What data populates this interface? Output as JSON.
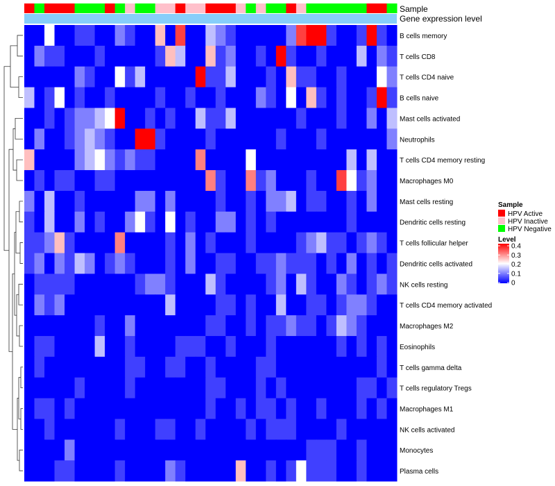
{
  "chart_data": {
    "type": "heatmap",
    "title": "",
    "annotation_labels": {
      "sample": "Sample",
      "expression": "Gene expression level"
    },
    "rows": [
      "B cells memory",
      "T cells CD8",
      "T cells CD4 naive",
      "B cells naive",
      "Mast cells activated",
      "Neutrophils",
      "T cells CD4 memory resting",
      "Macrophages M0",
      "Mast cells resting",
      "Dendritic cells resting",
      "T cells follicular helper",
      "Dendritic cells activated",
      "NK cells resting",
      "T cells CD4 memory activated",
      "Macrophages M2",
      "Eosinophils",
      "T cells gamma delta",
      "T cells regulatory  Tregs",
      "Macrophages M1",
      "NK cells activated",
      "Monocytes",
      "Plasma cells"
    ],
    "sample_groups": [
      "HPV Active",
      "HPV Negative",
      "HPV Active",
      "HPV Active",
      "HPV Active",
      "HPV Negative",
      "HPV Negative",
      "HPV Negative",
      "HPV Active",
      "HPV Negative",
      "HPV Inactive",
      "HPV Negative",
      "HPV Negative",
      "HPV Inactive",
      "HPV Inactive",
      "HPV Active",
      "HPV Inactive",
      "HPV Inactive",
      "HPV Active",
      "HPV Active",
      "HPV Active",
      "HPV Inactive",
      "HPV Negative",
      "HPV Inactive",
      "HPV Negative",
      "HPV Negative",
      "HPV Active",
      "HPV Inactive",
      "HPV Negative",
      "HPV Negative",
      "HPV Negative",
      "HPV Negative",
      "HPV Negative",
      "HPV Negative",
      "HPV Active",
      "HPV Active",
      "HPV Negative"
    ],
    "expression_band_color": "#87CEFA",
    "values": [
      [
        0.0,
        0.0,
        0.2,
        0.0,
        0.0,
        0.05,
        0.05,
        0.0,
        0.0,
        0.1,
        0.05,
        0.0,
        0.0,
        0.25,
        0.0,
        0.35,
        0.0,
        0.0,
        0.15,
        0.1,
        0.05,
        0.0,
        0.0,
        0.0,
        0.0,
        0.0,
        0.1,
        0.35,
        0.4,
        0.4,
        0.05,
        0.0,
        0.0,
        0.05,
        0.4,
        0.05,
        0.0
      ],
      [
        0.0,
        0.1,
        0.05,
        0.05,
        0.0,
        0.0,
        0.0,
        0.05,
        0.0,
        0.0,
        0.0,
        0.0,
        0.0,
        0.05,
        0.25,
        0.15,
        0.0,
        0.0,
        0.25,
        0.05,
        0.1,
        0.0,
        0.0,
        0.05,
        0.0,
        0.4,
        0.05,
        0.0,
        0.0,
        0.05,
        0.0,
        0.0,
        0.0,
        0.15,
        0.0,
        0.1,
        0.05
      ],
      [
        0.0,
        0.0,
        0.0,
        0.0,
        0.0,
        0.1,
        0.05,
        0.0,
        0.0,
        0.2,
        0.05,
        0.15,
        0.0,
        0.0,
        0.0,
        0.0,
        0.0,
        0.4,
        0.05,
        0.05,
        0.15,
        0.0,
        0.0,
        0.0,
        0.05,
        0.0,
        0.25,
        0.05,
        0.05,
        0.0,
        0.0,
        0.05,
        0.0,
        0.0,
        0.0,
        0.2,
        0.1
      ],
      [
        0.15,
        0.0,
        0.05,
        0.2,
        0.0,
        0.05,
        0.0,
        0.0,
        0.05,
        0.0,
        0.0,
        0.0,
        0.0,
        0.05,
        0.0,
        0.0,
        0.05,
        0.0,
        0.0,
        0.05,
        0.0,
        0.0,
        0.0,
        0.1,
        0.05,
        0.0,
        0.2,
        0.0,
        0.25,
        0.05,
        0.0,
        0.05,
        0.0,
        0.0,
        0.05,
        0.4,
        0.05
      ],
      [
        0.0,
        0.0,
        0.05,
        0.0,
        0.05,
        0.1,
        0.1,
        0.15,
        0.2,
        0.4,
        0.0,
        0.0,
        0.05,
        0.0,
        0.05,
        0.0,
        0.0,
        0.15,
        0.05,
        0.05,
        0.15,
        0.0,
        0.0,
        0.0,
        0.0,
        0.0,
        0.0,
        0.05,
        0.0,
        0.0,
        0.0,
        0.05,
        0.0,
        0.0,
        0.1,
        0.0,
        0.15
      ],
      [
        0.0,
        0.1,
        0.0,
        0.0,
        0.05,
        0.1,
        0.15,
        0.1,
        0.05,
        0.0,
        0.0,
        0.4,
        0.4,
        0.05,
        0.0,
        0.0,
        0.0,
        0.0,
        0.05,
        0.0,
        0.0,
        0.0,
        0.0,
        0.0,
        0.0,
        0.05,
        0.0,
        0.0,
        0.0,
        0.05,
        0.0,
        0.0,
        0.0,
        0.0,
        0.0,
        0.0,
        0.1
      ],
      [
        0.25,
        0.0,
        0.0,
        0.0,
        0.0,
        0.1,
        0.15,
        0.2,
        0.1,
        0.05,
        0.1,
        0.05,
        0.05,
        0.0,
        0.0,
        0.0,
        0.0,
        0.3,
        0.0,
        0.0,
        0.0,
        0.0,
        0.2,
        0.0,
        0.0,
        0.0,
        0.0,
        0.0,
        0.0,
        0.0,
        0.0,
        0.0,
        0.15,
        0.0,
        0.15,
        0.0,
        0.0
      ],
      [
        0.0,
        0.05,
        0.0,
        0.05,
        0.05,
        0.0,
        0.0,
        0.05,
        0.05,
        0.0,
        0.0,
        0.0,
        0.0,
        0.0,
        0.0,
        0.0,
        0.0,
        0.0,
        0.3,
        0.05,
        0.0,
        0.0,
        0.3,
        0.05,
        0.1,
        0.0,
        0.0,
        0.0,
        0.05,
        0.0,
        0.0,
        0.35,
        0.2,
        0.05,
        0.1,
        0.0,
        0.0
      ],
      [
        0.1,
        0.0,
        0.15,
        0.0,
        0.0,
        0.05,
        0.0,
        0.0,
        0.0,
        0.0,
        0.0,
        0.1,
        0.1,
        0.0,
        0.1,
        0.0,
        0.0,
        0.0,
        0.0,
        0.05,
        0.0,
        0.0,
        0.05,
        0.0,
        0.1,
        0.1,
        0.15,
        0.0,
        0.05,
        0.05,
        0.0,
        0.0,
        0.05,
        0.0,
        0.1,
        0.0,
        0.0
      ],
      [
        0.05,
        0.0,
        0.15,
        0.0,
        0.0,
        0.1,
        0.0,
        0.05,
        0.0,
        0.0,
        0.1,
        0.2,
        0.05,
        0.0,
        0.2,
        0.0,
        0.05,
        0.0,
        0.0,
        0.1,
        0.1,
        0.0,
        0.05,
        0.0,
        0.05,
        0.0,
        0.0,
        0.0,
        0.0,
        0.0,
        0.0,
        0.0,
        0.05,
        0.0,
        0.0,
        0.0,
        0.0
      ],
      [
        0.05,
        0.05,
        0.1,
        0.25,
        0.05,
        0.0,
        0.0,
        0.0,
        0.0,
        0.3,
        0.0,
        0.0,
        0.0,
        0.0,
        0.05,
        0.0,
        0.1,
        0.0,
        0.05,
        0.0,
        0.0,
        0.0,
        0.05,
        0.0,
        0.0,
        0.0,
        0.0,
        0.05,
        0.1,
        0.15,
        0.05,
        0.05,
        0.0,
        0.05,
        0.1,
        0.05,
        0.0
      ],
      [
        0.05,
        0.1,
        0.0,
        0.1,
        0.05,
        0.15,
        0.1,
        0.0,
        0.05,
        0.1,
        0.05,
        0.0,
        0.0,
        0.0,
        0.05,
        0.0,
        0.1,
        0.0,
        0.0,
        0.05,
        0.05,
        0.0,
        0.0,
        0.05,
        0.05,
        0.1,
        0.05,
        0.05,
        0.05,
        0.0,
        0.05,
        0.0,
        0.1,
        0.0,
        0.05,
        0.0,
        0.05
      ],
      [
        0.0,
        0.05,
        0.05,
        0.05,
        0.05,
        0.0,
        0.0,
        0.0,
        0.0,
        0.0,
        0.0,
        0.05,
        0.1,
        0.1,
        0.05,
        0.0,
        0.0,
        0.0,
        0.15,
        0.05,
        0.0,
        0.0,
        0.0,
        0.0,
        0.05,
        0.1,
        0.0,
        0.15,
        0.05,
        0.0,
        0.0,
        0.1,
        0.05,
        0.0,
        0.05,
        0.1,
        0.05
      ],
      [
        0.0,
        0.1,
        0.05,
        0.1,
        0.0,
        0.0,
        0.0,
        0.0,
        0.0,
        0.0,
        0.0,
        0.0,
        0.0,
        0.0,
        0.15,
        0.0,
        0.0,
        0.0,
        0.0,
        0.05,
        0.05,
        0.0,
        0.05,
        0.0,
        0.0,
        0.15,
        0.0,
        0.0,
        0.05,
        0.05,
        0.0,
        0.05,
        0.1,
        0.1,
        0.05,
        0.0,
        0.0
      ],
      [
        0.0,
        0.0,
        0.0,
        0.0,
        0.0,
        0.0,
        0.0,
        0.05,
        0.0,
        0.0,
        0.1,
        0.0,
        0.0,
        0.0,
        0.0,
        0.0,
        0.0,
        0.0,
        0.05,
        0.05,
        0.0,
        0.0,
        0.05,
        0.0,
        0.05,
        0.05,
        0.1,
        0.05,
        0.05,
        0.0,
        0.05,
        0.15,
        0.1,
        0.05,
        0.0,
        0.0,
        0.0
      ],
      [
        0.0,
        0.05,
        0.05,
        0.0,
        0.0,
        0.0,
        0.0,
        0.15,
        0.0,
        0.0,
        0.05,
        0.0,
        0.0,
        0.0,
        0.0,
        0.05,
        0.05,
        0.05,
        0.0,
        0.0,
        0.05,
        0.0,
        0.0,
        0.0,
        0.05,
        0.0,
        0.0,
        0.0,
        0.0,
        0.0,
        0.0,
        0.05,
        0.0,
        0.05,
        0.0,
        0.05,
        0.0
      ],
      [
        0.0,
        0.05,
        0.0,
        0.0,
        0.0,
        0.0,
        0.0,
        0.0,
        0.0,
        0.0,
        0.05,
        0.05,
        0.0,
        0.0,
        0.05,
        0.05,
        0.0,
        0.0,
        0.05,
        0.0,
        0.0,
        0.0,
        0.0,
        0.05,
        0.05,
        0.0,
        0.0,
        0.0,
        0.0,
        0.0,
        0.0,
        0.0,
        0.0,
        0.0,
        0.0,
        0.05,
        0.0
      ],
      [
        0.0,
        0.0,
        0.0,
        0.0,
        0.0,
        0.05,
        0.0,
        0.0,
        0.0,
        0.0,
        0.05,
        0.0,
        0.0,
        0.0,
        0.0,
        0.0,
        0.0,
        0.0,
        0.05,
        0.05,
        0.0,
        0.0,
        0.0,
        0.05,
        0.0,
        0.05,
        0.0,
        0.0,
        0.0,
        0.0,
        0.0,
        0.0,
        0.0,
        0.05,
        0.05,
        0.0,
        0.05
      ],
      [
        0.0,
        0.05,
        0.05,
        0.0,
        0.05,
        0.0,
        0.0,
        0.0,
        0.0,
        0.0,
        0.0,
        0.0,
        0.0,
        0.0,
        0.0,
        0.0,
        0.0,
        0.0,
        0.05,
        0.0,
        0.0,
        0.05,
        0.0,
        0.05,
        0.05,
        0.0,
        0.05,
        0.0,
        0.0,
        0.05,
        0.0,
        0.0,
        0.0,
        0.05,
        0.0,
        0.05,
        0.0
      ],
      [
        0.0,
        0.0,
        0.05,
        0.0,
        0.0,
        0.0,
        0.0,
        0.0,
        0.0,
        0.05,
        0.0,
        0.0,
        0.0,
        0.05,
        0.05,
        0.0,
        0.0,
        0.05,
        0.0,
        0.0,
        0.0,
        0.0,
        0.05,
        0.0,
        0.05,
        0.05,
        0.05,
        0.0,
        0.0,
        0.0,
        0.0,
        0.05,
        0.0,
        0.0,
        0.0,
        0.0,
        0.0
      ],
      [
        0.0,
        0.0,
        0.0,
        0.0,
        0.1,
        0.0,
        0.0,
        0.0,
        0.0,
        0.0,
        0.0,
        0.0,
        0.0,
        0.0,
        0.0,
        0.0,
        0.0,
        0.0,
        0.0,
        0.0,
        0.0,
        0.0,
        0.0,
        0.0,
        0.0,
        0.0,
        0.0,
        0.0,
        0.05,
        0.05,
        0.05,
        0.0,
        0.0,
        0.05,
        0.0,
        0.0,
        0.0
      ],
      [
        0.0,
        0.0,
        0.0,
        0.05,
        0.05,
        0.0,
        0.0,
        0.0,
        0.0,
        0.05,
        0.0,
        0.0,
        0.0,
        0.0,
        0.1,
        0.05,
        0.0,
        0.0,
        0.0,
        0.0,
        0.0,
        0.25,
        0.0,
        0.0,
        0.05,
        0.0,
        0.05,
        0.2,
        0.05,
        0.05,
        0.05,
        0.0,
        0.0,
        0.05,
        0.0,
        0.0,
        0.0
      ]
    ],
    "legends": {
      "sample": {
        "title": "Sample",
        "items": [
          {
            "label": "HPV Active",
            "color": "#FF0000"
          },
          {
            "label": "HPV Inactive",
            "color": "#FFC0CB"
          },
          {
            "label": "HPV Negative",
            "color": "#00FF00"
          }
        ]
      },
      "level": {
        "title": "Level",
        "ticks": [
          "0.4",
          "0.3",
          "0.2",
          "0.1",
          "0"
        ],
        "range": [
          0,
          0.4
        ],
        "colors": {
          "low": "#0000FF",
          "mid": "#FFFFFF",
          "high": "#FF0000"
        }
      }
    },
    "dendrogram": "rows",
    "grid": false
  }
}
